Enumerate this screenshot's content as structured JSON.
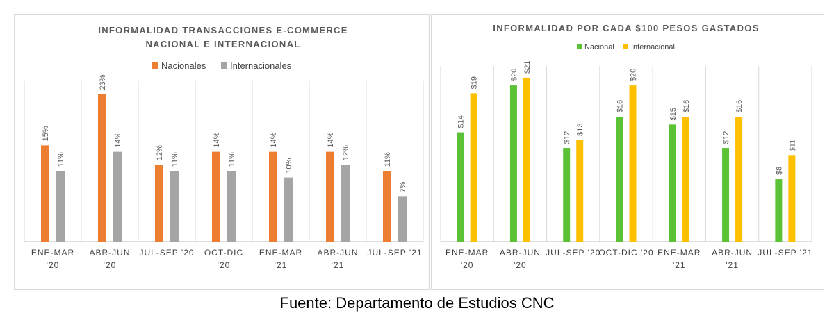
{
  "colors": {
    "nacionales": "#ED7D31",
    "internacionales": "#A5A5A5",
    "nacional": "#5BC236",
    "internacional": "#FFC000",
    "grid": "#d9d9d9",
    "axis": "#bfbfbf"
  },
  "source": "Fuente: Departamento de Estudios CNC",
  "chart_data": [
    {
      "type": "bar",
      "title_lines": [
        "INFORMALIDAD TRANSACCIONES E-COMMERCE",
        "NACIONAL E INTERNACIONAL"
      ],
      "categories": [
        [
          "ENE-MAR",
          "'20"
        ],
        [
          "ABR-JUN",
          "'20"
        ],
        [
          "JUL-SEP '20"
        ],
        [
          "OCT-DIC",
          "'20"
        ],
        [
          "ENE-MAR",
          "'21"
        ],
        [
          "ABR-JUN",
          "'21"
        ],
        [
          "JUL-SEP '21"
        ]
      ],
      "series": [
        {
          "name": "Nacionales",
          "values": [
            15,
            23,
            12,
            14,
            14,
            14,
            11
          ],
          "labels": [
            "15%",
            "23%",
            "12%",
            "14%",
            "14%",
            "14%",
            "11%"
          ]
        },
        {
          "name": "Internacionales",
          "values": [
            11,
            14,
            11,
            11,
            10,
            12,
            7
          ],
          "labels": [
            "11%",
            "14%",
            "11%",
            "11%",
            "10%",
            "12%",
            "7%"
          ]
        }
      ],
      "ylim": [
        0,
        25
      ],
      "legend_position": "top",
      "grid": "vertical"
    },
    {
      "type": "bar",
      "title_lines": [
        "INFORMALIDAD POR CADA $100 PESOS GASTADOS"
      ],
      "categories": [
        [
          "ENE-MAR",
          "'20"
        ],
        [
          "ABR-JUN",
          "'20"
        ],
        [
          "JUL-SEP '20"
        ],
        [
          "OCT-DIC '20"
        ],
        [
          "ENE-MAR",
          "'21"
        ],
        [
          "ABR-JUN",
          "'21"
        ],
        [
          "JUL-SEP '21"
        ]
      ],
      "series": [
        {
          "name": "Nacional",
          "values": [
            14,
            20,
            12,
            16,
            15,
            12,
            8
          ],
          "labels": [
            "$14",
            "$20",
            "$12",
            "$16",
            "$15",
            "$12",
            "$8"
          ]
        },
        {
          "name": "Internacional",
          "values": [
            19,
            21,
            13,
            20,
            16,
            16,
            11
          ],
          "labels": [
            "$19",
            "$21",
            "$13",
            "$20",
            "$16",
            "$16",
            "$11"
          ]
        }
      ],
      "ylim": [
        0,
        22.5
      ],
      "legend_position": "top",
      "grid": "vertical"
    }
  ]
}
